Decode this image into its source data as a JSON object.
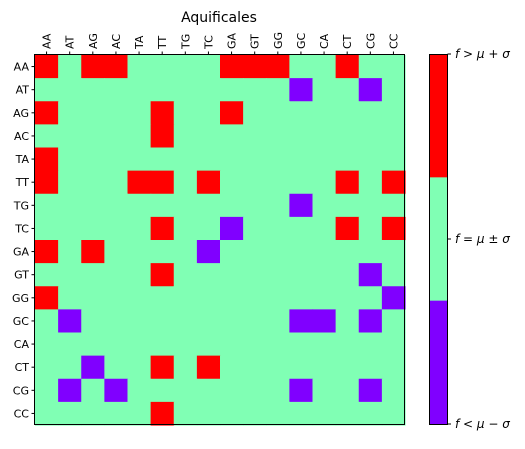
{
  "chart_data": {
    "type": "heatmap",
    "title": "Aquificales",
    "x_labels": [
      "AA",
      "AT",
      "AG",
      "AC",
      "TA",
      "TT",
      "TG",
      "TC",
      "GA",
      "GT",
      "GG",
      "GC",
      "CA",
      "CT",
      "CG",
      "CC"
    ],
    "y_labels": [
      "AA",
      "AT",
      "AG",
      "AC",
      "TA",
      "TT",
      "TG",
      "TC",
      "GA",
      "GT",
      "GG",
      "GC",
      "CA",
      "CT",
      "CG",
      "CC"
    ],
    "values": [
      [
        1,
        0,
        1,
        1,
        0,
        0,
        0,
        0,
        1,
        1,
        1,
        0,
        0,
        1,
        0,
        0
      ],
      [
        0,
        0,
        0,
        0,
        0,
        0,
        0,
        0,
        0,
        0,
        0,
        -1,
        0,
        0,
        -1,
        0
      ],
      [
        1,
        0,
        0,
        0,
        0,
        1,
        0,
        0,
        1,
        0,
        0,
        0,
        0,
        0,
        0,
        0
      ],
      [
        0,
        0,
        0,
        0,
        0,
        1,
        0,
        0,
        0,
        0,
        0,
        0,
        0,
        0,
        0,
        0
      ],
      [
        1,
        0,
        0,
        0,
        0,
        0,
        0,
        0,
        0,
        0,
        0,
        0,
        0,
        0,
        0,
        0
      ],
      [
        1,
        0,
        0,
        0,
        1,
        1,
        0,
        1,
        0,
        0,
        0,
        0,
        0,
        1,
        0,
        1
      ],
      [
        0,
        0,
        0,
        0,
        0,
        0,
        0,
        0,
        0,
        0,
        0,
        -1,
        0,
        0,
        0,
        0
      ],
      [
        0,
        0,
        0,
        0,
        0,
        1,
        0,
        0,
        -1,
        0,
        0,
        0,
        0,
        1,
        0,
        1
      ],
      [
        1,
        0,
        1,
        0,
        0,
        0,
        0,
        -1,
        0,
        0,
        0,
        0,
        0,
        0,
        0,
        0
      ],
      [
        0,
        0,
        0,
        0,
        0,
        1,
        0,
        0,
        0,
        0,
        0,
        0,
        0,
        0,
        -1,
        0
      ],
      [
        1,
        0,
        0,
        0,
        0,
        0,
        0,
        0,
        0,
        0,
        0,
        0,
        0,
        0,
        0,
        -1
      ],
      [
        0,
        -1,
        0,
        0,
        0,
        0,
        0,
        0,
        0,
        0,
        0,
        -1,
        -1,
        0,
        -1,
        0
      ],
      [
        0,
        0,
        0,
        0,
        0,
        0,
        0,
        0,
        0,
        0,
        0,
        0,
        0,
        0,
        0,
        0
      ],
      [
        0,
        0,
        -1,
        0,
        0,
        1,
        0,
        1,
        0,
        0,
        0,
        0,
        0,
        0,
        0,
        0
      ],
      [
        0,
        -1,
        0,
        -1,
        0,
        0,
        0,
        0,
        0,
        0,
        0,
        -1,
        0,
        0,
        -1,
        0
      ],
      [
        0,
        0,
        0,
        0,
        0,
        1,
        0,
        0,
        0,
        0,
        0,
        0,
        0,
        0,
        0,
        0
      ]
    ],
    "colorbar": {
      "levels": [
        {
          "value": 1,
          "label": "f > μ + σ",
          "color": "#ff0000"
        },
        {
          "value": 0,
          "label": "f = μ ± σ",
          "color": "#80ffb4"
        },
        {
          "value": -1,
          "label": "f < μ − σ",
          "color": "#8000ff"
        }
      ]
    },
    "grid": false,
    "legend": "colorbar-right"
  }
}
